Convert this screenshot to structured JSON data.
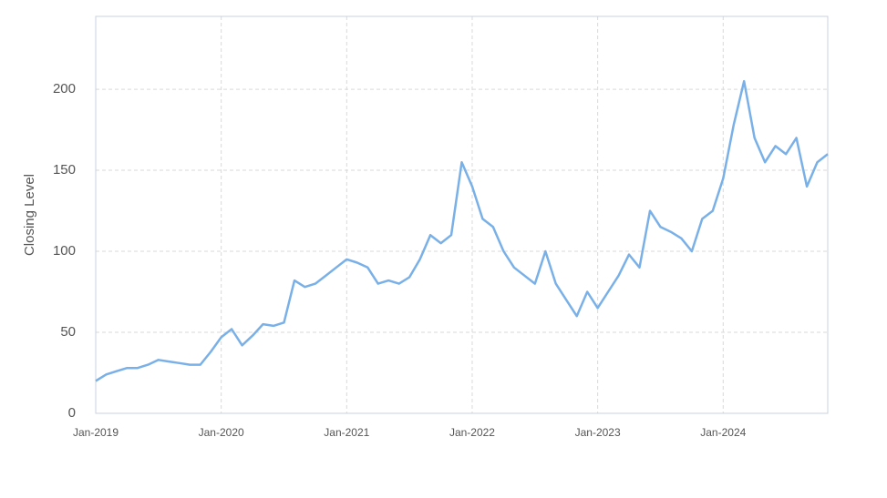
{
  "chart_data": {
    "type": "line",
    "y_label": "Closing Level",
    "x": [
      "2019-01",
      "2019-02",
      "2019-03",
      "2019-04",
      "2019-05",
      "2019-06",
      "2019-07",
      "2019-08",
      "2019-09",
      "2019-10",
      "2019-11",
      "2019-12",
      "2020-01",
      "2020-02",
      "2020-03",
      "2020-04",
      "2020-05",
      "2020-06",
      "2020-07",
      "2020-08",
      "2020-09",
      "2020-10",
      "2020-11",
      "2020-12",
      "2021-01",
      "2021-02",
      "2021-03",
      "2021-04",
      "2021-05",
      "2021-06",
      "2021-07",
      "2021-08",
      "2021-09",
      "2021-10",
      "2021-11",
      "2021-12",
      "2022-01",
      "2022-02",
      "2022-03",
      "2022-04",
      "2022-05",
      "2022-06",
      "2022-07",
      "2022-08",
      "2022-09",
      "2022-10",
      "2022-11",
      "2022-12",
      "2023-01",
      "2023-02",
      "2023-03",
      "2023-04",
      "2023-05",
      "2023-06",
      "2023-07",
      "2023-08",
      "2023-09",
      "2023-10",
      "2023-11",
      "2023-12",
      "2024-01",
      "2024-02",
      "2024-03",
      "2024-04",
      "2024-05",
      "2024-06",
      "2024-07",
      "2024-08",
      "2024-09",
      "2024-10",
      "2024-11"
    ],
    "values": [
      20,
      24,
      26,
      28,
      28,
      30,
      33,
      32,
      31,
      30,
      30,
      38,
      47,
      52,
      42,
      48,
      55,
      54,
      56,
      82,
      78,
      80,
      85,
      90,
      95,
      93,
      90,
      80,
      82,
      80,
      84,
      95,
      110,
      105,
      110,
      155,
      140,
      120,
      115,
      100,
      90,
      85,
      80,
      100,
      80,
      70,
      60,
      75,
      65,
      75,
      85,
      98,
      90,
      125,
      115,
      112,
      108,
      100,
      120,
      125,
      145,
      178,
      205,
      170,
      155,
      165,
      160,
      170,
      140,
      155,
      160
    ],
    "color": "#7ab0e8",
    "xlim": [
      "2019-01",
      "2024-11"
    ],
    "xticks": [
      {
        "value": "2019-01",
        "label": "Jan-2019"
      },
      {
        "value": "2020-01",
        "label": "Jan-2020"
      },
      {
        "value": "2021-01",
        "label": "Jan-2021"
      },
      {
        "value": "2022-01",
        "label": "Jan-2022"
      },
      {
        "value": "2023-01",
        "label": "Jan-2023"
      },
      {
        "value": "2024-01",
        "label": "Jan-2024"
      }
    ],
    "ylim": [
      0,
      245
    ],
    "yticks": [
      0,
      50,
      100,
      150,
      200
    ],
    "grid": true
  }
}
